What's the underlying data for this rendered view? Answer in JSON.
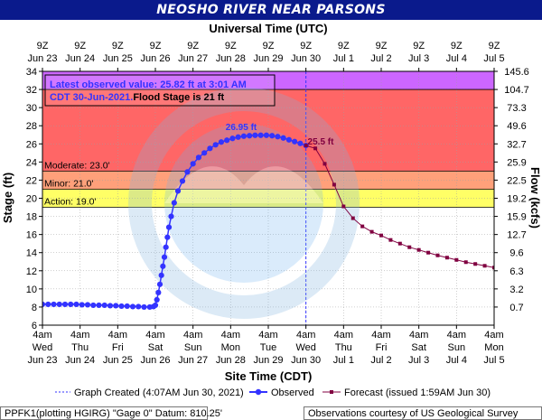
{
  "header": {
    "title": "NEOSHO RIVER NEAR PARSONS"
  },
  "axes": {
    "top_title": "Universal Time (UTC)",
    "bottom_title": "Site Time (CDT)",
    "left_title": "Stage (ft)",
    "right_title": "Flow (kcfs)"
  },
  "annotations": {
    "latest_line1": "Latest observed value: 25.82 ft at 3:01 AM",
    "latest_line2a": "CDT 30-Jun-2021.",
    "latest_line2b": "Flood Stage is 21 ft",
    "crest_observed": "26.95 ft",
    "crest_forecast": "25.5 ft"
  },
  "legend": {
    "created": "Graph Created (4:07AM Jun 30, 2021)",
    "observed": "Observed",
    "forecast": "Forecast (issued 1:59AM Jun 30)"
  },
  "footer": {
    "left": "PPFK1(plotting HGIRG) \"Gage 0\" Datum: 810.25'",
    "right": "Observations courtesy of US Geological Survey"
  },
  "colors": {
    "major": "#cc66ff",
    "moderate": "#ff6666",
    "minor": "#ffa07a",
    "action": "#ffff66",
    "observed": "#3333ff",
    "forecast": "#800040",
    "title_bg": "#0a1a8c"
  },
  "chart_data": {
    "type": "line",
    "y_range": [
      6,
      34
    ],
    "x_range_days": [
      "Jun 23 4am",
      "Jul 5 4am"
    ],
    "flood_categories": [
      {
        "label": "Moderate: 23.0'",
        "stage": 23.0
      },
      {
        "label": "Minor: 21.0'",
        "stage": 21.0
      },
      {
        "label": "Action: 19.0'",
        "stage": 19.0
      }
    ],
    "y_ticks": [
      6,
      8,
      10,
      12,
      14,
      16,
      18,
      20,
      22,
      24,
      26,
      28,
      30,
      32,
      34
    ],
    "flow_ticks": [
      {
        "stage": 8,
        "label": "0.7"
      },
      {
        "stage": 10,
        "label": "3.2"
      },
      {
        "stage": 12,
        "label": "6.3"
      },
      {
        "stage": 14,
        "label": "9.6"
      },
      {
        "stage": 16,
        "label": "12.7"
      },
      {
        "stage": 18,
        "label": "15.9"
      },
      {
        "stage": 20,
        "label": "19.2"
      },
      {
        "stage": 22,
        "label": "22.5"
      },
      {
        "stage": 24,
        "label": "25.9"
      },
      {
        "stage": 26,
        "label": "32.7"
      },
      {
        "stage": 28,
        "label": "49.6"
      },
      {
        "stage": 30,
        "label": "73.3"
      },
      {
        "stage": 32,
        "label": "104.7"
      },
      {
        "stage": 34,
        "label": "145.6"
      }
    ],
    "bottom_ticks": [
      {
        "l1": "4am",
        "l2": "Wed",
        "l3": "Jun 23"
      },
      {
        "l1": "4am",
        "l2": "Thu",
        "l3": "Jun 24"
      },
      {
        "l1": "4am",
        "l2": "Fri",
        "l3": "Jun 25"
      },
      {
        "l1": "4am",
        "l2": "Sat",
        "l3": "Jun 26"
      },
      {
        "l1": "4am",
        "l2": "Sun",
        "l3": "Jun 27"
      },
      {
        "l1": "4am",
        "l2": "Mon",
        "l3": "Jun 28"
      },
      {
        "l1": "4am",
        "l2": "Tue",
        "l3": "Jun 29"
      },
      {
        "l1": "4am",
        "l2": "Wed",
        "l3": "Jun 30"
      },
      {
        "l1": "4am",
        "l2": "Thu",
        "l3": "Jul 1"
      },
      {
        "l1": "4am",
        "l2": "Fri",
        "l3": "Jul 2"
      },
      {
        "l1": "4am",
        "l2": "Sat",
        "l3": "Jul 3"
      },
      {
        "l1": "4am",
        "l2": "Sun",
        "l3": "Jul 4"
      },
      {
        "l1": "4am",
        "l2": "Mon",
        "l3": "Jul 5"
      }
    ],
    "top_ticks": [
      {
        "l1": "9Z",
        "l2": "Jun 23"
      },
      {
        "l1": "9Z",
        "l2": "Jun 24"
      },
      {
        "l1": "9Z",
        "l2": "Jun 25"
      },
      {
        "l1": "9Z",
        "l2": "Jun 26"
      },
      {
        "l1": "9Z",
        "l2": "Jun 27"
      },
      {
        "l1": "9Z",
        "l2": "Jun 28"
      },
      {
        "l1": "9Z",
        "l2": "Jun 29"
      },
      {
        "l1": "9Z",
        "l2": "Jun 30"
      },
      {
        "l1": "9Z",
        "l2": "Jul 1"
      },
      {
        "l1": "9Z",
        "l2": "Jul 2"
      },
      {
        "l1": "9Z",
        "l2": "Jul 3"
      },
      {
        "l1": "9Z",
        "l2": "Jul 4"
      },
      {
        "l1": "9Z",
        "l2": "Jul 5"
      }
    ],
    "created_day": 7.0,
    "series": [
      {
        "name": "Observed",
        "days": [
          0.0,
          0.15,
          0.3,
          0.45,
          0.6,
          0.75,
          0.9,
          1.05,
          1.2,
          1.35,
          1.5,
          1.65,
          1.8,
          1.95,
          2.1,
          2.25,
          2.4,
          2.55,
          2.7,
          2.85,
          2.95,
          3.0,
          3.04,
          3.08,
          3.12,
          3.16,
          3.2,
          3.24,
          3.28,
          3.32,
          3.36,
          3.42,
          3.5,
          3.6,
          3.72,
          3.85,
          4.0,
          4.15,
          4.3,
          4.45,
          4.6,
          4.75,
          4.9,
          5.05,
          5.2,
          5.35,
          5.5,
          5.65,
          5.8,
          5.95,
          6.1,
          6.25,
          6.4,
          6.55,
          6.7,
          6.85,
          7.0
        ],
        "values": [
          8.3,
          8.3,
          8.3,
          8.3,
          8.3,
          8.3,
          8.3,
          8.25,
          8.25,
          8.2,
          8.2,
          8.2,
          8.15,
          8.15,
          8.1,
          8.1,
          8.05,
          8.05,
          8.0,
          8.0,
          8.05,
          8.2,
          8.8,
          9.6,
          10.5,
          11.5,
          12.5,
          13.5,
          14.6,
          15.7,
          16.8,
          18.0,
          19.5,
          20.8,
          21.9,
          22.9,
          23.8,
          24.5,
          25.0,
          25.5,
          25.9,
          26.2,
          26.4,
          26.6,
          26.75,
          26.85,
          26.9,
          26.95,
          26.95,
          26.95,
          26.9,
          26.8,
          26.65,
          26.45,
          26.25,
          26.05,
          25.82
        ]
      },
      {
        "name": "Forecast",
        "days": [
          7.0,
          7.25,
          7.5,
          7.75,
          8.0,
          8.25,
          8.5,
          8.75,
          9.0,
          9.25,
          9.5,
          9.75,
          10.0,
          10.25,
          10.5,
          10.75,
          11.0,
          11.25,
          11.5,
          11.75,
          12.0
        ],
        "values": [
          25.82,
          25.5,
          23.8,
          21.5,
          19.1,
          17.8,
          16.9,
          16.3,
          15.9,
          15.4,
          15.0,
          14.6,
          14.3,
          14.0,
          13.7,
          13.45,
          13.2,
          12.95,
          12.75,
          12.55,
          12.35
        ]
      }
    ]
  }
}
